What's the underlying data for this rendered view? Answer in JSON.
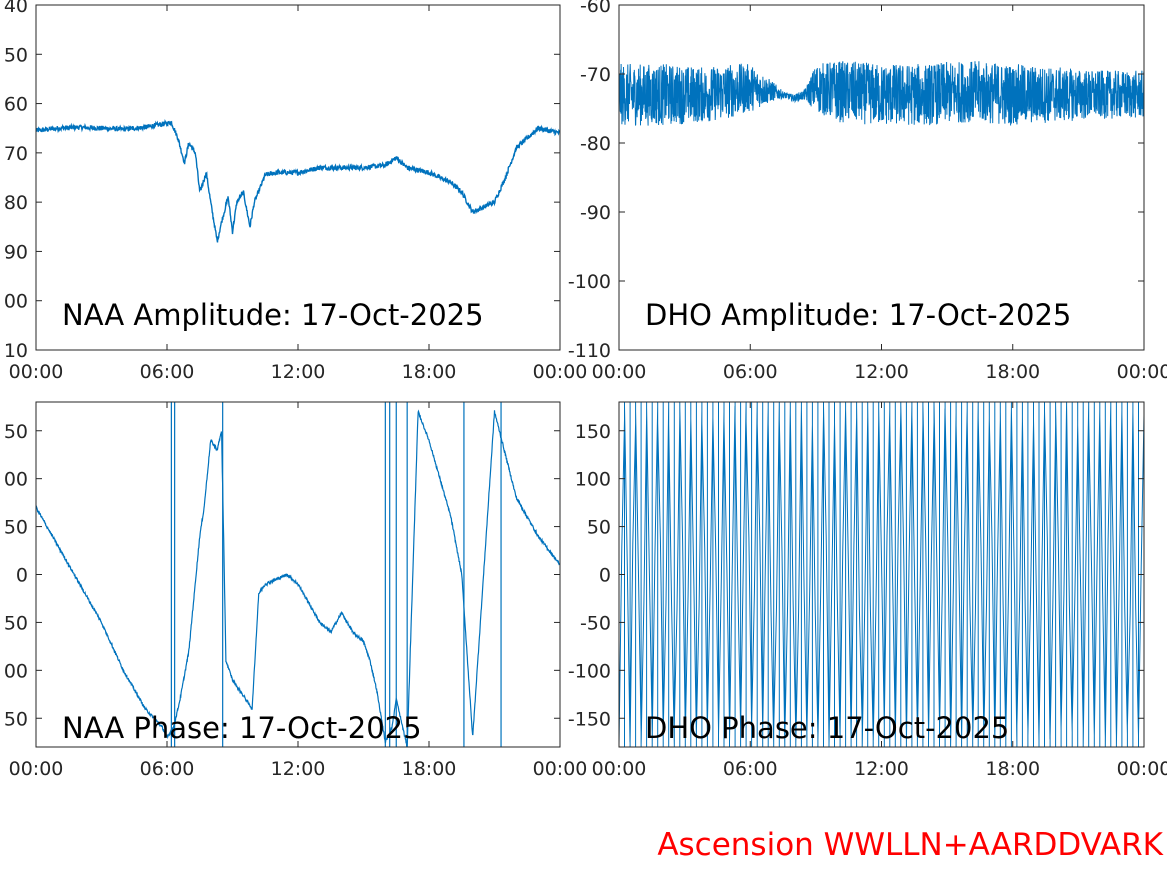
{
  "figure": {
    "footer": "Ascension WWLLN+AARDDVARK",
    "footer_color": "#ff0000"
  },
  "chart_data": [
    {
      "type": "line",
      "title": "NAA Amplitude: 17-Oct-2025",
      "xlim": [
        "00:00",
        "24:00"
      ],
      "xticks": [
        "00:00",
        "06:00",
        "12:00",
        "18:00",
        "00:00"
      ],
      "ylim": [
        -110,
        -40
      ],
      "yticks": [
        "40",
        "50",
        "60",
        "70",
        "80",
        "90",
        "00",
        "10"
      ],
      "color": "#0072BD",
      "grid": false,
      "series": [
        {
          "x": [
            0,
            1,
            2,
            3,
            4,
            5,
            6,
            6.2,
            6.5,
            6.8,
            7.0,
            7.3,
            7.5,
            7.8,
            8.0,
            8.3,
            8.5,
            8.8,
            9.0,
            9.2,
            9.5,
            9.8,
            10.0,
            10.5,
            11,
            12,
            13,
            14,
            15,
            16,
            16.5,
            17,
            18,
            19,
            19.5,
            20,
            21,
            21.5,
            22,
            23,
            24
          ],
          "y": [
            -65.5,
            -65,
            -64.8,
            -65,
            -65.2,
            -64.8,
            -64,
            -63.8,
            -67,
            -72,
            -68,
            -70,
            -78,
            -74,
            -80,
            -88,
            -84,
            -79,
            -86,
            -80,
            -78,
            -85,
            -80,
            -74.5,
            -74,
            -74,
            -73,
            -73,
            -73,
            -72.5,
            -71,
            -73,
            -74,
            -76,
            -78,
            -82,
            -80,
            -75,
            -69,
            -65,
            -66
          ]
        }
      ]
    },
    {
      "type": "line",
      "title": "DHO Amplitude: 17-Oct-2025",
      "xlim": [
        "00:00",
        "24:00"
      ],
      "xticks": [
        "00:00",
        "06:00",
        "12:00",
        "18:00",
        "00:00"
      ],
      "ylim": [
        -110,
        -60
      ],
      "yticks": [
        "-60",
        "-70",
        "-80",
        "-90",
        "-100",
        "-110"
      ],
      "color": "#0072BD",
      "grid": false,
      "series": [
        {
          "x": [
            0,
            2,
            4,
            5,
            6,
            7,
            7.5,
            8,
            8.5,
            9,
            10,
            12,
            14,
            16,
            18,
            20,
            22,
            24
          ],
          "y": [
            -73,
            -73,
            -73,
            -72.5,
            -72,
            -72.5,
            -73,
            -73.5,
            -73,
            -72,
            -72.5,
            -73,
            -73,
            -72.5,
            -73,
            -73,
            -73,
            -73
          ],
          "spread": [
            4.5,
            4.5,
            4,
            4,
            3.5,
            1.5,
            0.5,
            0.5,
            0.8,
            3.5,
            4.5,
            4.5,
            4.5,
            4.5,
            4.5,
            4,
            3.5,
            3.5
          ]
        }
      ]
    },
    {
      "type": "line",
      "title": "NAA Phase: 17-Oct-2025",
      "xlim": [
        "00:00",
        "24:00"
      ],
      "xticks": [
        "00:00",
        "06:00",
        "12:00",
        "18:00",
        "00:00"
      ],
      "ylim": [
        -180,
        180
      ],
      "yticks": [
        "50",
        "00",
        "50",
        "0",
        "50",
        "00",
        "50"
      ],
      "color": "#0072BD",
      "grid": false,
      "series": [
        {
          "x": [
            0,
            0.5,
            1,
            2,
            3,
            4,
            5,
            5.8,
            6.0,
            6.3,
            6.6,
            7.0,
            7.5,
            7.7,
            8.0,
            8.3,
            8.5,
            8.7,
            9.0,
            9.3,
            9.6,
            9.9,
            10.2,
            10.5,
            11,
            11.5,
            12,
            12.5,
            13,
            13.5,
            14,
            14.5,
            15,
            15.3,
            15.6,
            16.0,
            16.3,
            16.5,
            17.0,
            17.5,
            18,
            19,
            19.5,
            20,
            21,
            22,
            23,
            24
          ],
          "y": [
            70,
            50,
            30,
            -10,
            -50,
            -100,
            -140,
            -160,
            -170,
            -160,
            -130,
            -80,
            40,
            70,
            140,
            130,
            150,
            -90,
            -110,
            -120,
            -130,
            -140,
            -20,
            -10,
            -5,
            0,
            -10,
            -30,
            -50,
            -60,
            -40,
            -60,
            -70,
            -90,
            -120,
            -175,
            -160,
            -130,
            -180,
            170,
            140,
            60,
            0,
            -170,
            170,
            80,
            40,
            10
          ]
        }
      ]
    },
    {
      "type": "line",
      "title": "DHO Phase: 17-Oct-2025",
      "xlim": [
        "00:00",
        "24:00"
      ],
      "xticks": [
        "00:00",
        "06:00",
        "12:00",
        "18:00",
        "00:00"
      ],
      "ylim": [
        -180,
        180
      ],
      "yticks": [
        "150",
        "100",
        "50",
        "0",
        "-50",
        "-100",
        "-150"
      ],
      "color": "#0072BD",
      "grid": false,
      "wrap_cycles": 95,
      "series": [
        {
          "x": [
            0,
            24
          ],
          "y": [
            -180,
            180
          ]
        }
      ]
    }
  ]
}
